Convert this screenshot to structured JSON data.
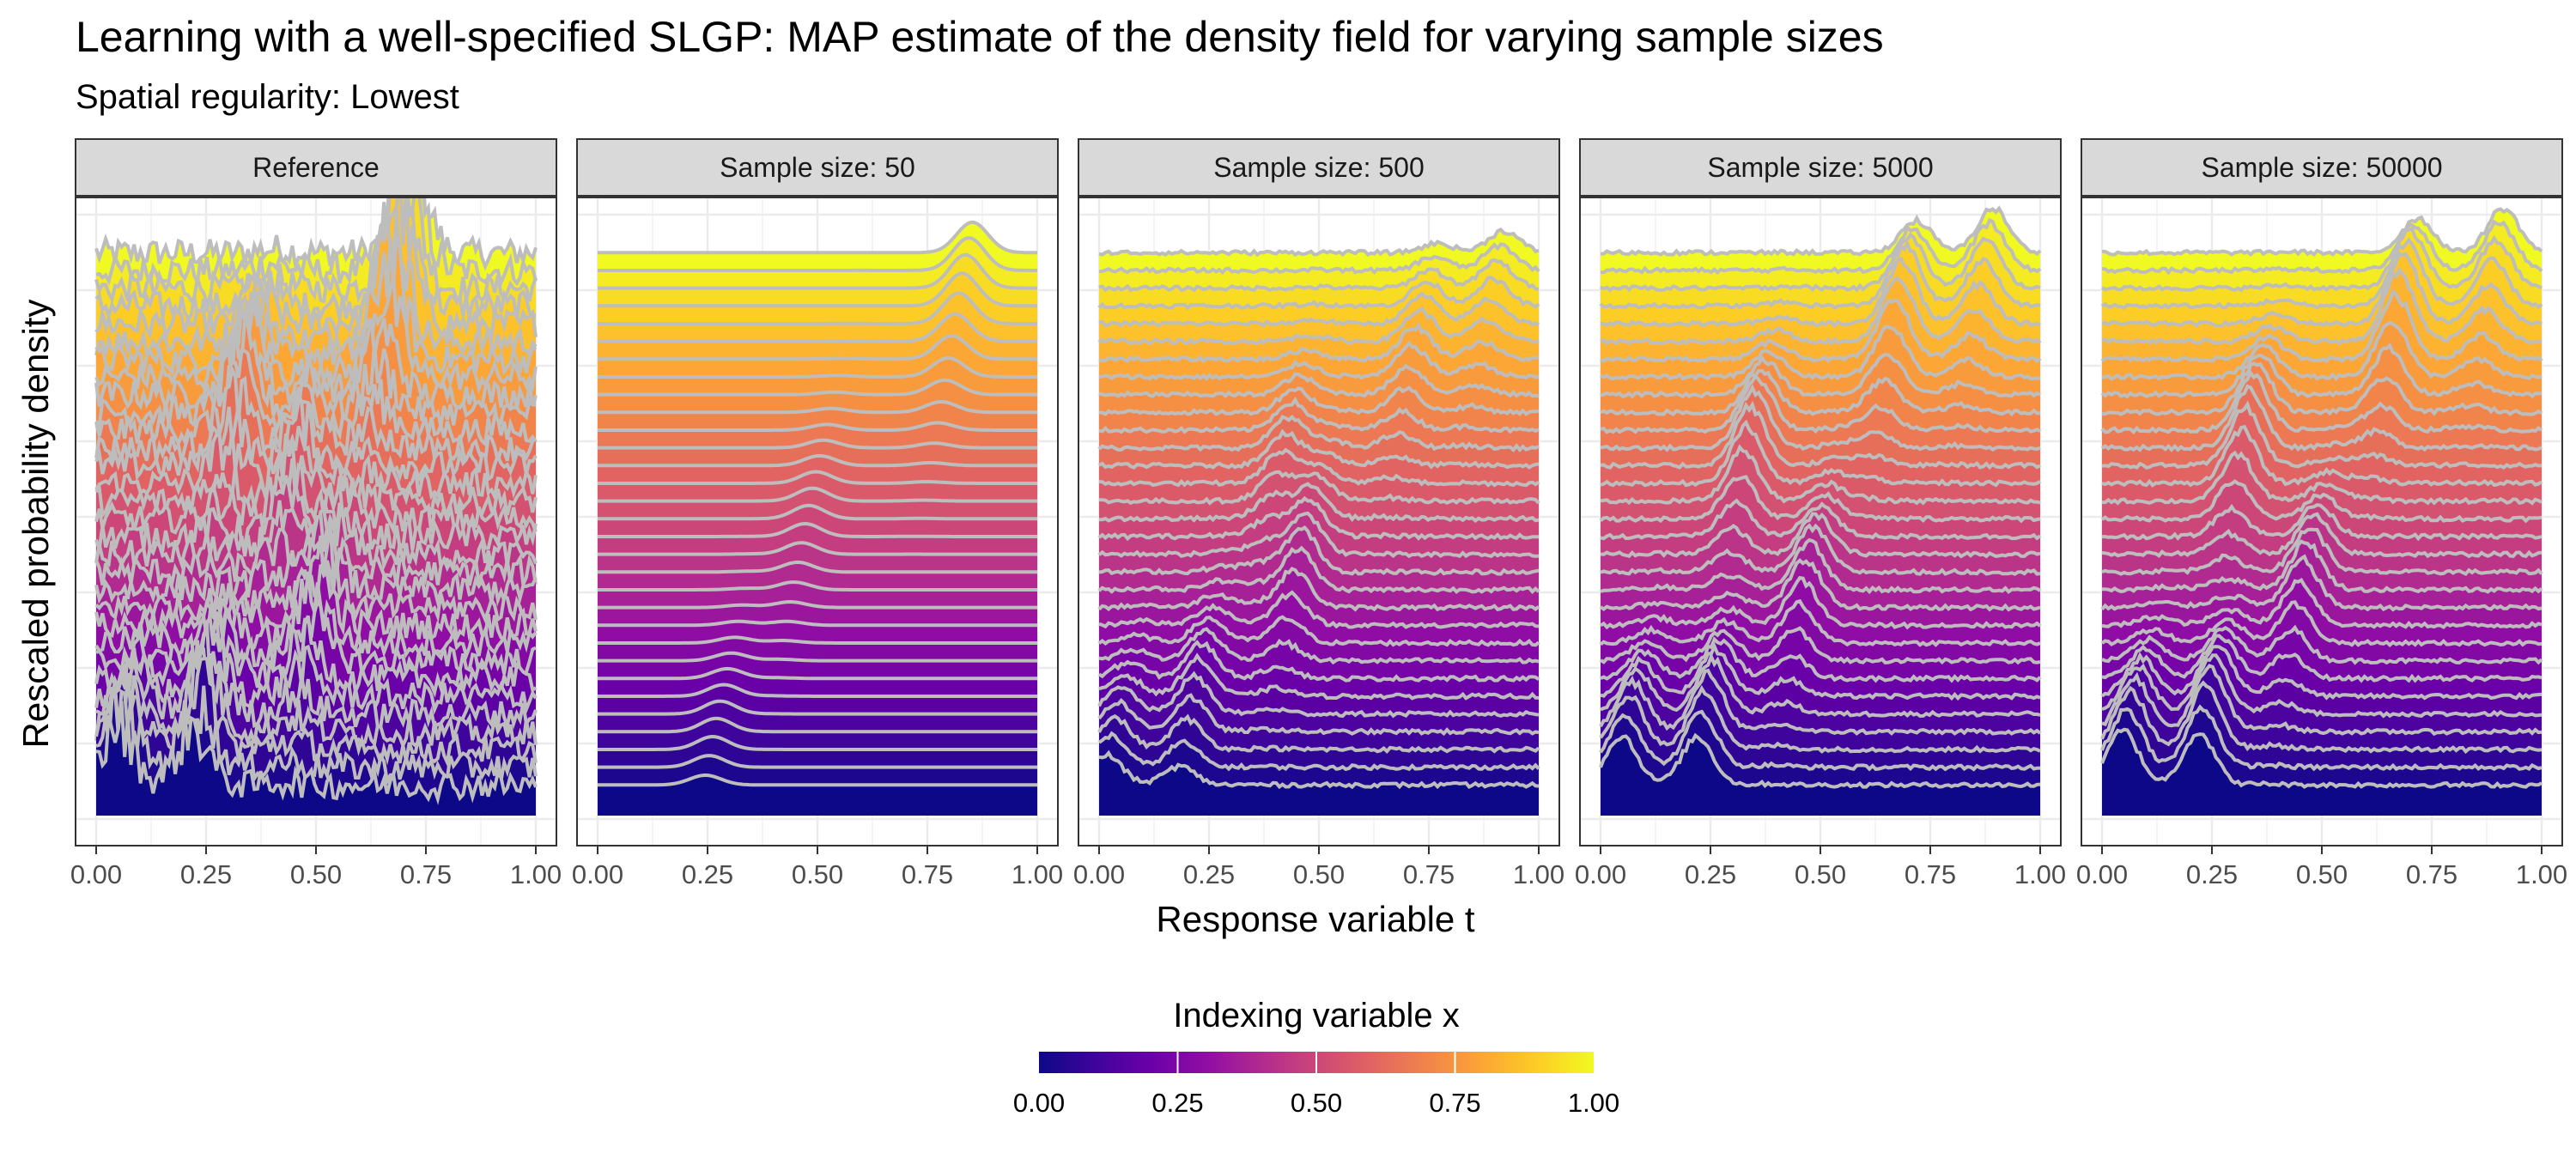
{
  "title": "Learning with a well-specified SLGP: MAP estimate of the density field for varying sample sizes",
  "subtitle": "Spatial regularity: Lowest",
  "colors": {
    "ridge_outline": "#bdbdbd",
    "strip_fill": "#d9d9d9",
    "grid": "#ebebeb",
    "palette": [
      "#0d0887",
      "#3e049c",
      "#6a00a8",
      "#8f0da4",
      "#b12a90",
      "#cc4778",
      "#e16462",
      "#f1844b",
      "#fca636",
      "#fcce25",
      "#f0f921"
    ],
    "palette_name": "plasma"
  },
  "chart_data": {
    "type": "ridgeline",
    "xlabel": "Response variable t",
    "ylabel": "Rescaled probability density",
    "xlim": [
      0,
      1
    ],
    "x_ticks": [
      "0.00",
      "0.25",
      "0.50",
      "0.75",
      "1.00"
    ],
    "n_ridges": 31,
    "x_index_range": [
      0,
      1
    ],
    "panels": [
      {
        "label": "Reference",
        "peaks": [
          {
            "x_index": 0.0,
            "center": 0.05,
            "height": 1.1
          },
          {
            "x_index": 0.08,
            "center": 0.24,
            "height": 1.3
          },
          {
            "x_index": 0.3,
            "center": 0.5,
            "height": 1.0
          },
          {
            "x_index": 0.55,
            "center": 0.45,
            "height": 0.9
          },
          {
            "x_index": 0.7,
            "center": 0.33,
            "height": 1.2
          },
          {
            "x_index": 0.85,
            "center": 0.68,
            "height": 1.4
          },
          {
            "x_index": 0.95,
            "center": 0.7,
            "height": 1.2
          }
        ],
        "roughness": "high"
      },
      {
        "label": "Sample size: 50",
        "peaks": [
          {
            "x_index": 0.1,
            "center": 0.27,
            "height": 0.25
          },
          {
            "x_index": 0.5,
            "center": 0.48,
            "height": 0.25
          },
          {
            "x_index": 0.85,
            "center": 0.82,
            "height": 0.35
          },
          {
            "x_index": 1.0,
            "center": 0.85,
            "height": 0.4
          }
        ],
        "roughness": "none"
      },
      {
        "label": "Sample size: 500",
        "peaks": [
          {
            "x_index": 0.05,
            "center": 0.03,
            "height": 0.6
          },
          {
            "x_index": 0.15,
            "center": 0.22,
            "height": 0.7
          },
          {
            "x_index": 0.4,
            "center": 0.46,
            "height": 0.8
          },
          {
            "x_index": 0.6,
            "center": 0.42,
            "height": 0.6
          },
          {
            "x_index": 0.8,
            "center": 0.72,
            "height": 0.6
          },
          {
            "x_index": 0.92,
            "center": 0.9,
            "height": 0.5
          }
        ],
        "roughness": "low"
      },
      {
        "label": "Sample size: 5000",
        "peaks": [
          {
            "x_index": 0.05,
            "center": 0.06,
            "height": 1.0
          },
          {
            "x_index": 0.08,
            "center": 0.24,
            "height": 1.1
          },
          {
            "x_index": 0.35,
            "center": 0.47,
            "height": 0.9
          },
          {
            "x_index": 0.6,
            "center": 0.34,
            "height": 1.1
          },
          {
            "x_index": 0.85,
            "center": 0.68,
            "height": 1.2
          },
          {
            "x_index": 0.95,
            "center": 0.88,
            "height": 0.9
          }
        ],
        "roughness": "low"
      },
      {
        "label": "Sample size: 50000",
        "peaks": [
          {
            "x_index": 0.05,
            "center": 0.06,
            "height": 1.1
          },
          {
            "x_index": 0.08,
            "center": 0.24,
            "height": 1.2
          },
          {
            "x_index": 0.35,
            "center": 0.46,
            "height": 0.9
          },
          {
            "x_index": 0.62,
            "center": 0.33,
            "height": 1.1
          },
          {
            "x_index": 0.85,
            "center": 0.68,
            "height": 1.3
          },
          {
            "x_index": 0.95,
            "center": 0.9,
            "height": 0.9
          }
        ],
        "roughness": "low"
      }
    ],
    "legend": {
      "title": "Indexing variable x",
      "position": "bottom",
      "range": [
        0,
        1
      ],
      "ticks": [
        "0.00",
        "0.25",
        "0.50",
        "0.75",
        "1.00"
      ]
    },
    "grid": true
  }
}
